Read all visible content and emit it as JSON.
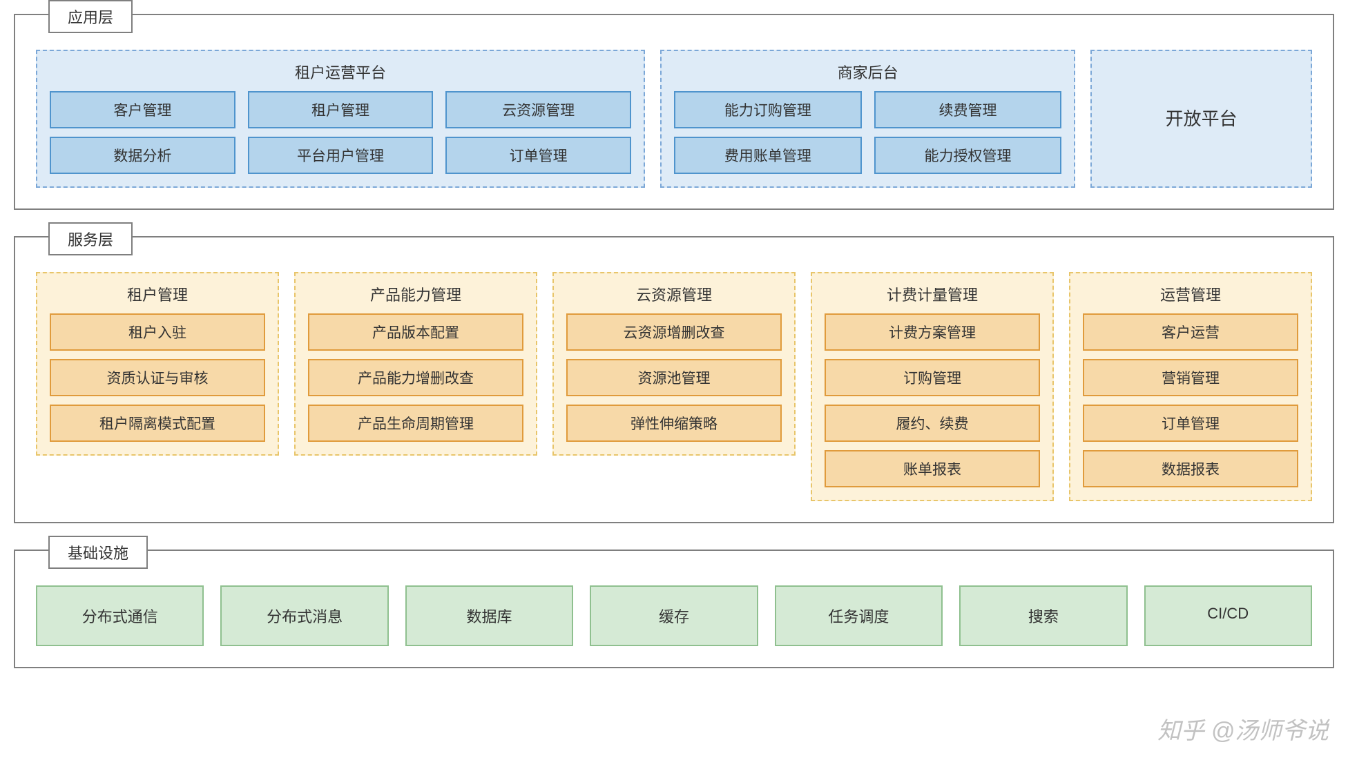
{
  "colors": {
    "layer_border": "#7f7f7f",
    "label_border": "#7f7f7f",
    "app_group_fill": "#deebf7",
    "app_group_border": "#7ba7d7",
    "app_cell_fill": "#b4d4ec",
    "app_cell_border": "#4f94cd",
    "svc_group_fill": "#fdf2d9",
    "svc_group_border": "#e8c56a",
    "svc_cell_fill": "#f7d9a8",
    "svc_cell_border": "#e09b3c",
    "infra_cell_fill": "#d5ead5",
    "infra_cell_border": "#8fc08f"
  },
  "layers": {
    "application": {
      "label": "应用层",
      "groups": [
        {
          "id": "tenant-ops",
          "title": "租户运营平台",
          "columns": 3,
          "width_flex": 3,
          "items": [
            "客户管理",
            "租户管理",
            "云资源管理",
            "数据分析",
            "平台用户管理",
            "订单管理"
          ]
        },
        {
          "id": "merchant-backend",
          "title": "商家后台",
          "columns": 2,
          "width_flex": 2,
          "items": [
            "能力订购管理",
            "续费管理",
            "费用账单管理",
            "能力授权管理"
          ]
        },
        {
          "id": "open-platform",
          "title": "开放平台",
          "columns": 0,
          "width_flex": 1,
          "items": []
        }
      ]
    },
    "service": {
      "label": "服务层",
      "groups": [
        {
          "id": "tenant-mgmt",
          "title": "租户管理",
          "items": [
            "租户入驻",
            "资质认证与审核",
            "租户隔离模式配置"
          ]
        },
        {
          "id": "product-cap",
          "title": "产品能力管理",
          "items": [
            "产品版本配置",
            "产品能力增删改查",
            "产品生命周期管理"
          ]
        },
        {
          "id": "cloud-res",
          "title": "云资源管理",
          "items": [
            "云资源增删改查",
            "资源池管理",
            "弹性伸缩策略"
          ]
        },
        {
          "id": "billing",
          "title": "计费计量管理",
          "items": [
            "计费方案管理",
            "订购管理",
            "履约、续费",
            "账单报表"
          ]
        },
        {
          "id": "ops-mgmt",
          "title": "运营管理",
          "items": [
            "客户运营",
            "营销管理",
            "订单管理",
            "数据报表"
          ]
        }
      ]
    },
    "infra": {
      "label": "基础设施",
      "items": [
        "分布式通信",
        "分布式消息",
        "数据库",
        "缓存",
        "任务调度",
        "搜索",
        "CI/CD"
      ]
    }
  },
  "watermark": "知乎 @汤师爷说"
}
